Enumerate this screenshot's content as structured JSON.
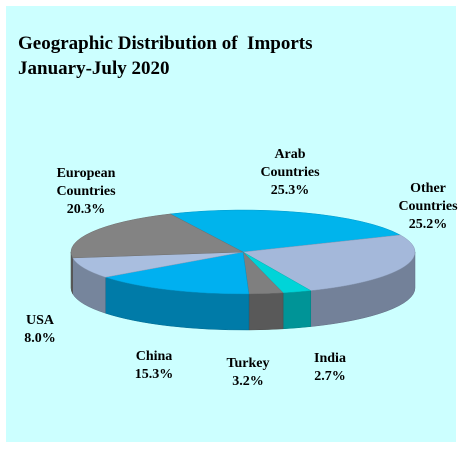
{
  "chart_data": {
    "type": "pie",
    "title": "Geographic Distribution of  Imports",
    "subtitle": "January-July 2020",
    "categories": [
      "Arab Countries",
      "Other Countries",
      "India",
      "Turkey",
      "China",
      "USA",
      "European Countries"
    ],
    "values": [
      25.3,
      25.2,
      2.7,
      3.2,
      15.3,
      8.0,
      20.3
    ],
    "value_labels": [
      "25.3%",
      "25.2%",
      "2.7%",
      "3.2%",
      "15.3%",
      "8.0%",
      "20.3%"
    ],
    "colors": [
      "#00b4ec",
      "#a4b8da",
      "#00d4d8",
      "#7f7f7f",
      "#00b0f0",
      "#a9bedf",
      "#838383"
    ]
  }
}
